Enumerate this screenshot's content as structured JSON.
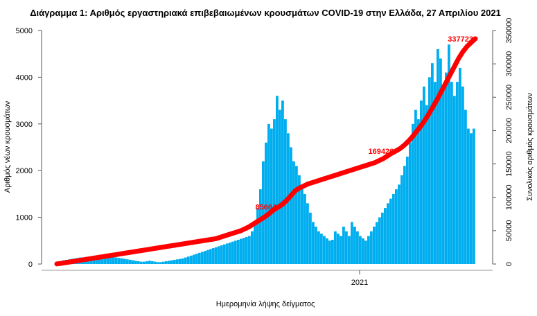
{
  "chart_data": {
    "type": "bar",
    "title": "Διάγραμμα 1: Αριθμός εργαστηριακά επιβεβαιωμένων κρουσμάτων COVID-19 στην Ελλάδα, 27 Απριλίου 2021",
    "xlabel": "Ημερομηνία λήψης δείγματος",
    "ylabel": "Αριθμός νέων κρουσμάτων",
    "y2label": "Συνολικός αριθμός κρουσμάτων",
    "x_tick_labels": [
      "2021"
    ],
    "ylim": [
      0,
      5000
    ],
    "y_ticks": [
      0,
      1000,
      2000,
      3000,
      4000,
      5000
    ],
    "y2lim": [
      0,
      350000
    ],
    "y2_ticks": [
      0,
      50000,
      100000,
      150000,
      200000,
      250000,
      300000,
      350000
    ],
    "grid": false,
    "bar_color": "#00aeef",
    "line_color": "#ff0000",
    "series": [
      {
        "kind": "bar",
        "axis": "left",
        "values": [
          40,
          60,
          80,
          90,
          100,
          110,
          120,
          130,
          140,
          120,
          110,
          100,
          90,
          80,
          90,
          100,
          110,
          120,
          130,
          140,
          150,
          140,
          130,
          120,
          110,
          100,
          90,
          80,
          70,
          60,
          50,
          50,
          60,
          70,
          60,
          50,
          40,
          40,
          50,
          60,
          70,
          80,
          90,
          100,
          110,
          120,
          140,
          160,
          180,
          200,
          220,
          240,
          260,
          280,
          300,
          320,
          340,
          360,
          380,
          400,
          420,
          440,
          460,
          480,
          500,
          520,
          540,
          560,
          580,
          600,
          700,
          900,
          1200,
          1600,
          2200,
          2600,
          3000,
          2900,
          3100,
          3600,
          3300,
          3500,
          3100,
          2800,
          2500,
          2200,
          2100,
          1900,
          1700,
          1500,
          1300,
          1100,
          900,
          800,
          700,
          650,
          600,
          550,
          500,
          520,
          700,
          650,
          600,
          800,
          700,
          600,
          900,
          800,
          700,
          600,
          550,
          500,
          600,
          700,
          800,
          900,
          1000,
          1100,
          1200,
          1300,
          1400,
          1500,
          1600,
          1700,
          1900,
          2100,
          2300,
          2600,
          3000,
          3300,
          3100,
          3500,
          3800,
          3400,
          4000,
          4300,
          3900,
          4600,
          4400,
          3800,
          4100,
          4700,
          3900,
          3600,
          3900,
          4200,
          3800,
          3300,
          2900,
          2800,
          2900
        ]
      },
      {
        "kind": "line",
        "axis": "right",
        "values": [
          200,
          1000,
          2000,
          3000,
          4000,
          5000,
          6000,
          7000,
          8000,
          9000,
          10000,
          11000,
          12000,
          13000,
          14000,
          15000,
          16000,
          17000,
          18000,
          19000,
          20000,
          21000,
          22000,
          23000,
          24000,
          25000,
          26000,
          27000,
          28000,
          29000,
          30000,
          31000,
          32000,
          33000,
          34000,
          35000,
          36000,
          37000,
          38000,
          40000,
          42000,
          44000,
          46000,
          48000,
          50000,
          53000,
          56000,
          60000,
          64000,
          68000,
          72000,
          77000,
          82000,
          85664,
          90000,
          96000,
          103000,
          110000,
          114000,
          117000,
          120000,
          122000,
          124000,
          126000,
          128000,
          130000,
          132000,
          134000,
          136000,
          138000,
          140000,
          142000,
          144000,
          146000,
          148000,
          150000,
          152000,
          155000,
          158000,
          162000,
          166000,
          169426,
          173000,
          178000,
          184000,
          191000,
          199000,
          207000,
          216000,
          226000,
          237000,
          248000,
          260000,
          272000,
          284000,
          296000,
          308000,
          318000,
          326000,
          332000,
          337723
        ]
      }
    ],
    "annotations": [
      "85664",
      "169426",
      "337723"
    ]
  }
}
